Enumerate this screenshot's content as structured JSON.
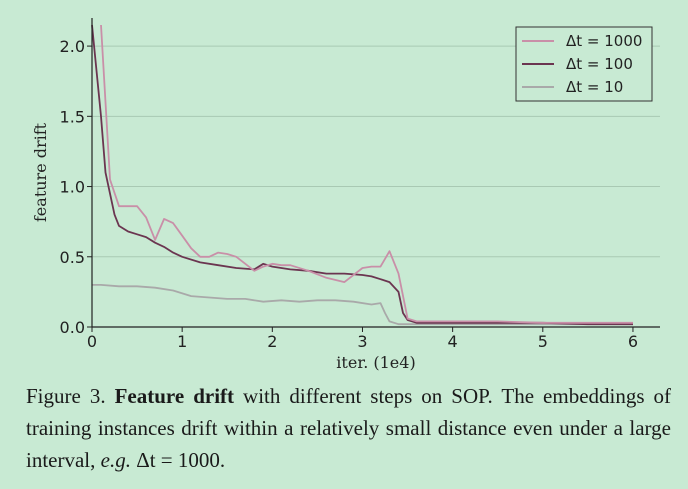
{
  "chart_data": {
    "type": "line",
    "title": "",
    "xlabel": "iter. (1e4)",
    "ylabel": "feature drift",
    "xlim": [
      0,
      6.3
    ],
    "ylim": [
      0,
      2.2
    ],
    "xticks": [
      0,
      1,
      2,
      3,
      4,
      5,
      6
    ],
    "yticks": [
      0.0,
      0.5,
      1.0,
      1.5,
      2.0
    ],
    "xtick_labels": [
      "0",
      "1",
      "2",
      "3",
      "4",
      "5",
      "6"
    ],
    "ytick_labels": [
      "0.0",
      "0.5",
      "1.0",
      "1.5",
      "2.0"
    ],
    "grid": "horizontal",
    "legend_position": "top-right",
    "series": [
      {
        "name": "Δt = 1000",
        "color": "#c98fa8",
        "x": [
          0.1,
          0.2,
          0.3,
          0.5,
          0.6,
          0.7,
          0.8,
          0.9,
          1.0,
          1.1,
          1.2,
          1.3,
          1.4,
          1.5,
          1.6,
          1.7,
          1.8,
          1.9,
          2.0,
          2.1,
          2.2,
          2.4,
          2.6,
          2.8,
          3.0,
          3.1,
          3.2,
          3.3,
          3.4,
          3.5,
          3.6,
          4.0,
          4.5,
          5.0,
          5.5,
          6.0
        ],
        "values": [
          2.15,
          1.05,
          0.86,
          0.86,
          0.78,
          0.62,
          0.77,
          0.74,
          0.65,
          0.56,
          0.5,
          0.5,
          0.53,
          0.52,
          0.5,
          0.45,
          0.4,
          0.43,
          0.45,
          0.44,
          0.44,
          0.4,
          0.35,
          0.32,
          0.42,
          0.43,
          0.43,
          0.54,
          0.38,
          0.06,
          0.04,
          0.04,
          0.04,
          0.03,
          0.03,
          0.03
        ]
      },
      {
        "name": "Δt = 100",
        "color": "#6b3550",
        "x": [
          0.0,
          0.1,
          0.15,
          0.2,
          0.25,
          0.3,
          0.4,
          0.5,
          0.6,
          0.7,
          0.8,
          0.9,
          1.0,
          1.2,
          1.4,
          1.6,
          1.8,
          1.9,
          2.0,
          2.2,
          2.4,
          2.6,
          2.8,
          3.0,
          3.1,
          3.2,
          3.3,
          3.4,
          3.45,
          3.5,
          3.6,
          4.0,
          4.5,
          5.0,
          5.5,
          6.0
        ],
        "values": [
          2.15,
          1.5,
          1.1,
          0.95,
          0.8,
          0.72,
          0.68,
          0.66,
          0.64,
          0.6,
          0.57,
          0.53,
          0.5,
          0.46,
          0.44,
          0.42,
          0.41,
          0.45,
          0.43,
          0.41,
          0.4,
          0.38,
          0.38,
          0.37,
          0.36,
          0.34,
          0.32,
          0.25,
          0.1,
          0.05,
          0.03,
          0.03,
          0.03,
          0.03,
          0.02,
          0.02
        ]
      },
      {
        "name": "Δt = 10",
        "color": "#a9a9a9",
        "x": [
          0.0,
          0.1,
          0.3,
          0.5,
          0.7,
          0.9,
          1.1,
          1.3,
          1.5,
          1.7,
          1.9,
          2.1,
          2.3,
          2.5,
          2.7,
          2.9,
          3.1,
          3.2,
          3.25,
          3.3,
          3.4,
          3.5,
          3.6,
          4.0,
          4.5,
          5.0,
          5.5,
          6.0
        ],
        "values": [
          0.3,
          0.3,
          0.29,
          0.29,
          0.28,
          0.26,
          0.22,
          0.21,
          0.2,
          0.2,
          0.18,
          0.19,
          0.18,
          0.19,
          0.19,
          0.18,
          0.16,
          0.17,
          0.1,
          0.04,
          0.02,
          0.02,
          0.02,
          0.02,
          0.02,
          0.02,
          0.02,
          0.02
        ]
      }
    ]
  },
  "caption": {
    "figure_label": "Figure 3.",
    "bold_title": "Feature drift",
    "text_part1": " with different steps on SOP. The embeddings of training instances drift within a relatively small distance even under a large interval, ",
    "eg": "e.g.",
    "math": " Δt = 1000."
  }
}
